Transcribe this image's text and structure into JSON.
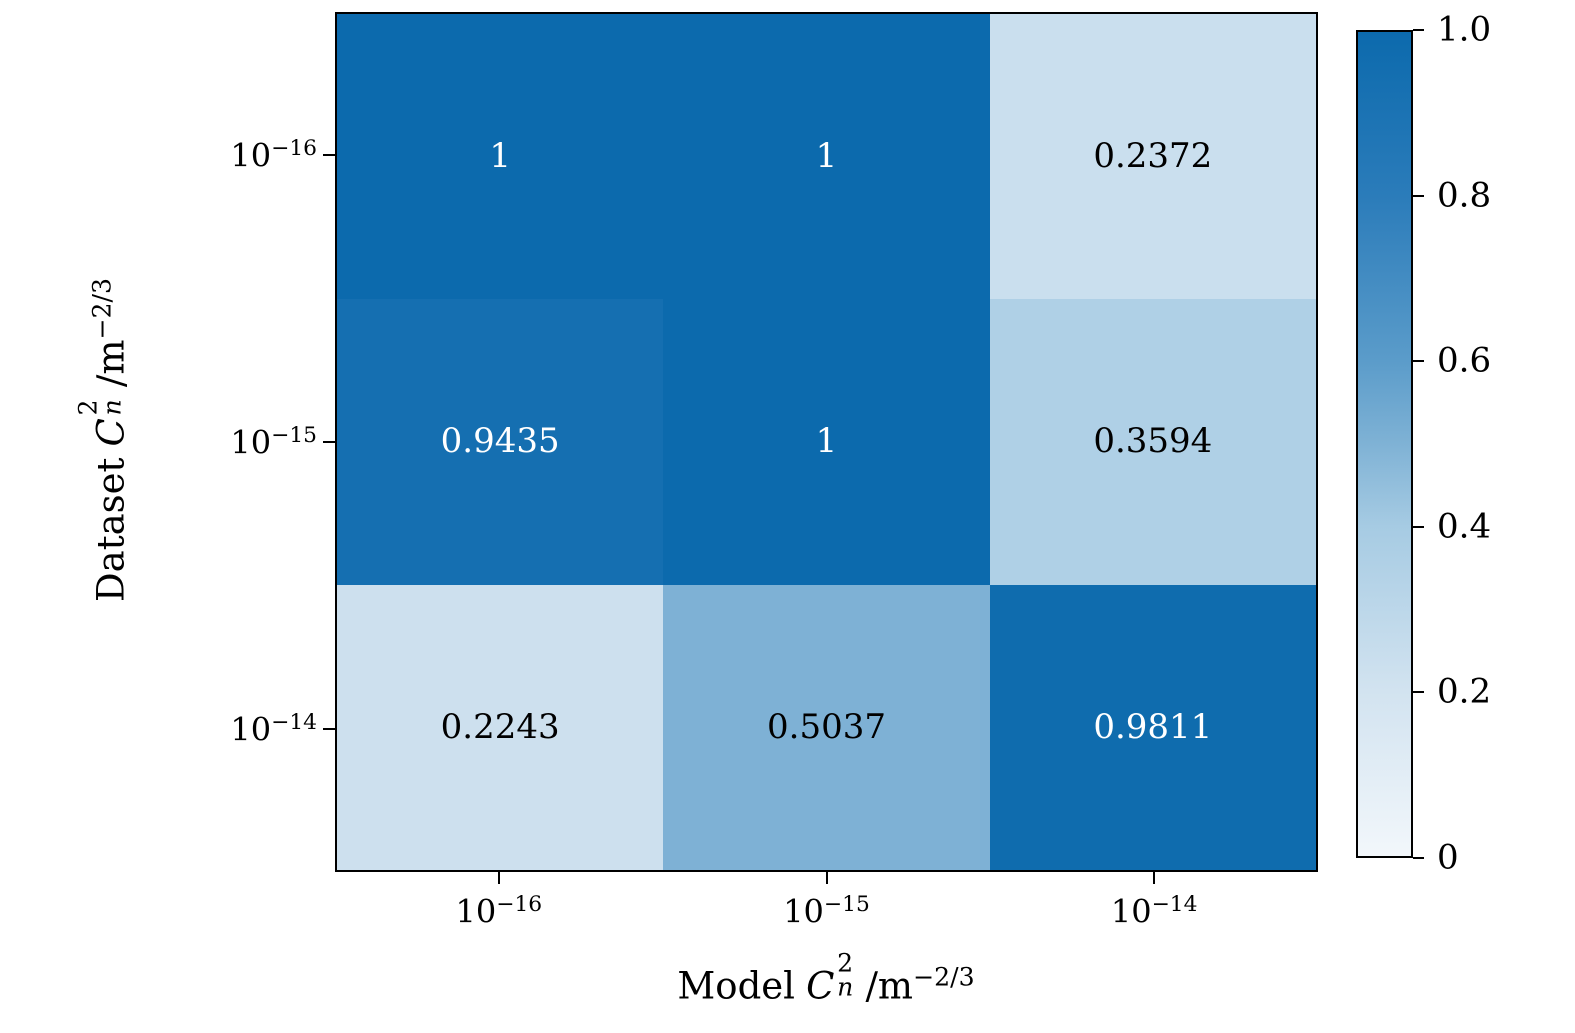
{
  "chart_data": {
    "type": "heatmap",
    "title": "",
    "xlabel": "Model C_n^2 / m^-2/3",
    "ylabel": "Dataset C_n^2 / m^-2/3",
    "x_categories": [
      "10^−16",
      "10^−15",
      "10^−14"
    ],
    "y_categories": [
      "10^−16",
      "10^−15",
      "10^−14"
    ],
    "values": [
      [
        1,
        1,
        0.2372
      ],
      [
        0.9435,
        1,
        0.3594
      ],
      [
        0.2243,
        0.5037,
        0.9811
      ]
    ],
    "cell_labels": [
      [
        "1",
        "1",
        "0.2372"
      ],
      [
        "0.9435",
        "1",
        "0.3594"
      ],
      [
        "0.2243",
        "0.5037",
        "0.9811"
      ]
    ],
    "vmin": 0,
    "vmax": 1,
    "colormap": "Blues",
    "grid": false,
    "legend_position": "right-colorbar",
    "colorbar_ticks": [
      {
        "value": 1.0,
        "label": "1.0"
      },
      {
        "value": 0.8,
        "label": "0.8"
      },
      {
        "value": 0.6,
        "label": "0.6"
      },
      {
        "value": 0.4,
        "label": "0.4"
      },
      {
        "value": 0.2,
        "label": "0.2"
      },
      {
        "value": 0.0,
        "label": "0"
      }
    ],
    "palette_stops": [
      [
        0.0,
        "#f2f7fb"
      ],
      [
        0.2,
        "#d2e3f0"
      ],
      [
        0.4,
        "#a6cbe3"
      ],
      [
        0.5,
        "#7fb2d5"
      ],
      [
        0.6,
        "#5b9cca"
      ],
      [
        0.8,
        "#2b7cba"
      ],
      [
        1.0,
        "#0c6aad"
      ]
    ],
    "annotation_text_colors": {
      "light": "#ffffff",
      "dark": "#000000",
      "threshold": 0.7
    }
  },
  "axis_labels": {
    "x": {
      "prefix": "Model",
      "symbol": "C",
      "sub": "n",
      "sup": "2",
      "unit": "/m",
      "unit_exp": "−2/3"
    },
    "y": {
      "prefix": "Dataset",
      "symbol": "C",
      "sub": "n",
      "sup": "2",
      "unit": "/m",
      "unit_exp": "−2/3"
    }
  }
}
